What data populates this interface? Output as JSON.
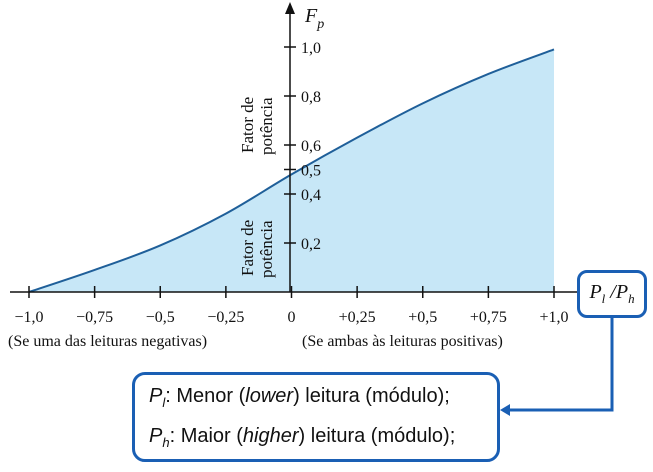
{
  "chart_data": {
    "type": "area",
    "x": [
      -1.0,
      -0.75,
      -0.5,
      -0.25,
      0,
      0.25,
      0.5,
      0.75,
      1.0
    ],
    "y": [
      0.0,
      0.09,
      0.19,
      0.32,
      0.48,
      0.63,
      0.77,
      0.89,
      0.99
    ],
    "xlim": [
      -1.0,
      1.0
    ],
    "ylim": [
      0,
      1.0
    ],
    "x_ticks": [
      "−1,0",
      "−0,75",
      "−0,5",
      "−0,25",
      "0",
      "+0,25",
      "+0,5",
      "+0,75",
      "+1,0"
    ],
    "y_ticks": [
      "0,2",
      "0,4",
      "0,5",
      "0,6",
      "0,8",
      "1,0"
    ],
    "y_tick_values": [
      0.2,
      0.4,
      0.5,
      0.6,
      0.8,
      1.0
    ],
    "fill_color": "#c7e7f7",
    "line_color": "#1f5f99",
    "grid": false
  },
  "labels": {
    "ylabel_main": "F",
    "ylabel_sub": "p",
    "xlabel_main_1": "P",
    "xlabel_sub_1": "l",
    "xlabel_sep": " /P",
    "xlabel_sub_2": "h",
    "rotated_upper_line1": "Fator de",
    "rotated_upper_line2": "potência",
    "rotated_lower_line1": "Fator de",
    "rotated_lower_line2": "potência",
    "note_left": "(Se uma das leituras negativas)",
    "note_right": "(Se ambas às leituras positivas)"
  },
  "legend": {
    "line1_sym": "P",
    "line1_sub": "l",
    "line1_text_a": ": Menor (",
    "line1_italic": "lower",
    "line1_text_b": ") leitura (módulo);",
    "line2_sym": "P",
    "line2_sub": "h",
    "line2_text_a": ": Maior (",
    "line2_italic": "higher",
    "line2_text_b": ") leitura (módulo);"
  },
  "colors": {
    "accent": "#1a5fb4"
  }
}
